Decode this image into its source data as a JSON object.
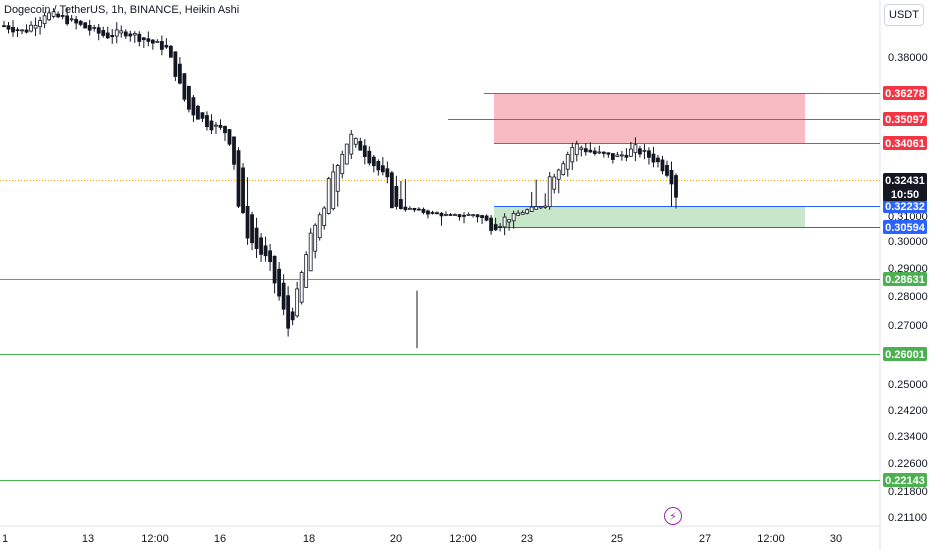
{
  "title": "Dogecoin / TetherUS, 1h, BINANCE, Heikin Ashi",
  "currency": "USDT",
  "bolt_icon": "lightning-icon",
  "colors": {
    "bull": "#26a69a",
    "bear": "#ef5350",
    "candle": "#131722",
    "resistance_zone": "#f8bbc3",
    "support_zone": "#c8e6c9",
    "red_label": "#f23645",
    "green_label": "#4caf50",
    "blue_label": "#2962ff",
    "current_label": "#131722"
  },
  "chart_data": {
    "type": "candlestick",
    "y_axis_ticks": [
      "0.38000",
      "0.30000",
      "0.29000",
      "0.28000",
      "0.27000",
      "0.25000",
      "0.24200",
      "0.23400",
      "0.22600",
      "0.21800",
      "0.21100"
    ],
    "x_axis_ticks": [
      "1",
      "13",
      "12:00",
      "16",
      "18",
      "20",
      "12:00",
      "23",
      "25",
      "27",
      "12:00",
      "30"
    ],
    "price_levels": [
      {
        "value": "0.36278",
        "kind": "red"
      },
      {
        "value": "0.35097",
        "kind": "red"
      },
      {
        "value": "0.34061",
        "kind": "red"
      },
      {
        "value": "0.32232",
        "kind": "blue"
      },
      {
        "value": "0.30594",
        "kind": "blue"
      },
      {
        "value": "0.28631",
        "kind": "green"
      },
      {
        "value": "0.26001",
        "kind": "green"
      },
      {
        "value": "0.22143",
        "kind": "green"
      }
    ],
    "current_price": {
      "value": "0.32431",
      "countdown": "10:50"
    },
    "partial_label": "0.31000",
    "zones": [
      {
        "name": "resistance",
        "from": 0.34061,
        "to": 0.36278
      },
      {
        "name": "support",
        "from": 0.30594,
        "to": 0.32232
      }
    ],
    "candles_close_trend": [
      0.395,
      0.392,
      0.401,
      0.398,
      0.394,
      0.39,
      0.392,
      0.388,
      0.384,
      0.356,
      0.349,
      0.345,
      0.301,
      0.292,
      0.268,
      0.3,
      0.325,
      0.344,
      0.333,
      0.322,
      0.318,
      0.313,
      0.31,
      0.312,
      0.306,
      0.311,
      0.32,
      0.327,
      0.34,
      0.336,
      0.334,
      0.338,
      0.333,
      0.324
    ]
  }
}
